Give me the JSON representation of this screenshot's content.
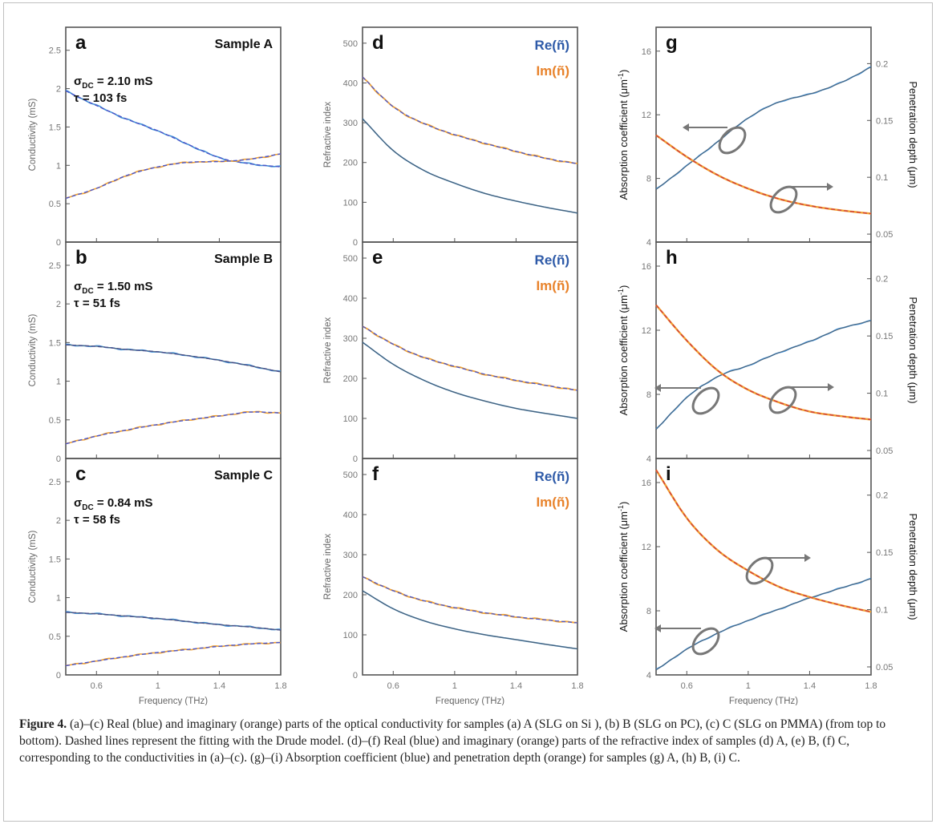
{
  "figure": {
    "panels": [
      {
        "id": "a",
        "label": "a",
        "sample": "Sample A",
        "sigma_dc": "2.10 mS",
        "tau": "103 fs"
      },
      {
        "id": "b",
        "label": "b",
        "sample": "Sample B",
        "sigma_dc": "1.50 mS",
        "tau": "51 fs"
      },
      {
        "id": "c",
        "label": "c",
        "sample": "Sample C",
        "sigma_dc": "0.84 mS",
        "tau": "58 fs"
      },
      {
        "id": "d",
        "label": "d"
      },
      {
        "id": "e",
        "label": "e"
      },
      {
        "id": "f",
        "label": "f"
      },
      {
        "id": "g",
        "label": "g"
      },
      {
        "id": "h",
        "label": "h"
      },
      {
        "id": "i",
        "label": "i"
      }
    ],
    "sigma_symbol": "σ",
    "sigma_subscript": "DC",
    "tau_symbol": "τ",
    "legend": {
      "re": "Re(ñ)",
      "im": "Im(ñ)"
    },
    "axis": {
      "frequency": "Frequency (THz)",
      "conductivity": "Conductivity (mS)",
      "refractive_index": "Refractive index",
      "absorption": "Absorption coefficient (μm",
      "absorption_sup": "-1",
      "absorption_end": ")",
      "penetration": "Penetration depth (μm)"
    },
    "ticks": {
      "x": [
        "0.6",
        "1",
        "1.4",
        "1.8"
      ],
      "conductivity": [
        "0",
        "0.5",
        "1",
        "1.5",
        "2",
        "2.5"
      ],
      "refractive": [
        "0",
        "100",
        "200",
        "300",
        "400",
        "500"
      ],
      "absorption": [
        "4",
        "8",
        "12",
        "16"
      ],
      "penetration": [
        "0.05",
        "0.1",
        "0.15",
        "0.2"
      ]
    }
  },
  "colors": {
    "real": "#3f8fd6",
    "imag": "#f0a030",
    "fit_blue": "#4a55c8",
    "fit_red": "#d23c3c",
    "dark": "#4a4a4a",
    "re_text": "#2e5aa8",
    "im_text": "#e8822a"
  },
  "chart_data": [
    {
      "type": "line",
      "panel": "a",
      "x": [
        0.4,
        0.6,
        0.8,
        1.0,
        1.2,
        1.4,
        1.6,
        1.8
      ],
      "xlim": [
        0.4,
        1.8
      ],
      "ylim": [
        0,
        2.8
      ],
      "series": [
        {
          "values": [
            1.97,
            1.78,
            1.6,
            1.45,
            1.27,
            1.1,
            1.02,
            0.98
          ]
        },
        {
          "values": [
            0.57,
            0.7,
            0.87,
            0.98,
            1.04,
            1.05,
            1.08,
            1.15
          ]
        }
      ]
    },
    {
      "type": "line",
      "panel": "b",
      "x": [
        0.4,
        0.6,
        0.8,
        1.0,
        1.2,
        1.4,
        1.6,
        1.8
      ],
      "xlim": [
        0.4,
        1.8
      ],
      "ylim": [
        0,
        2.8
      ],
      "series": [
        {
          "values": [
            1.47,
            1.45,
            1.41,
            1.38,
            1.33,
            1.27,
            1.2,
            1.12
          ]
        },
        {
          "values": [
            0.19,
            0.29,
            0.37,
            0.44,
            0.5,
            0.55,
            0.6,
            0.59
          ]
        }
      ]
    },
    {
      "type": "line",
      "panel": "c",
      "x": [
        0.4,
        0.6,
        0.8,
        1.0,
        1.2,
        1.4,
        1.6,
        1.8
      ],
      "xlim": [
        0.4,
        1.8
      ],
      "ylim": [
        0,
        2.8
      ],
      "series": [
        {
          "values": [
            0.81,
            0.79,
            0.76,
            0.73,
            0.69,
            0.65,
            0.62,
            0.58
          ]
        },
        {
          "values": [
            0.12,
            0.18,
            0.24,
            0.29,
            0.33,
            0.37,
            0.4,
            0.42
          ]
        }
      ]
    },
    {
      "type": "line",
      "panel": "d",
      "x": [
        0.4,
        0.6,
        0.8,
        1.0,
        1.2,
        1.4,
        1.6,
        1.8
      ],
      "xlim": [
        0.4,
        1.8
      ],
      "ylim": [
        0,
        540
      ],
      "series": [
        {
          "name": "Re(ñ)",
          "values": [
            310,
            230,
            180,
            148,
            122,
            103,
            87,
            73
          ]
        },
        {
          "name": "Im(ñ)",
          "values": [
            415,
            340,
            298,
            270,
            248,
            228,
            210,
            197
          ]
        }
      ]
    },
    {
      "type": "line",
      "panel": "e",
      "x": [
        0.4,
        0.6,
        0.8,
        1.0,
        1.2,
        1.4,
        1.6,
        1.8
      ],
      "xlim": [
        0.4,
        1.8
      ],
      "ylim": [
        0,
        540
      ],
      "series": [
        {
          "name": "Re(ñ)",
          "values": [
            290,
            235,
            195,
            165,
            143,
            125,
            112,
            100
          ]
        },
        {
          "name": "Im(ñ)",
          "values": [
            330,
            285,
            252,
            230,
            210,
            195,
            182,
            170
          ]
        }
      ]
    },
    {
      "type": "line",
      "panel": "f",
      "x": [
        0.4,
        0.6,
        0.8,
        1.0,
        1.2,
        1.4,
        1.6,
        1.8
      ],
      "xlim": [
        0.4,
        1.8
      ],
      "ylim": [
        0,
        540
      ],
      "series": [
        {
          "name": "Re(ñ)",
          "values": [
            210,
            165,
            135,
            115,
            100,
            88,
            76,
            65
          ]
        },
        {
          "name": "Im(ñ)",
          "values": [
            245,
            210,
            185,
            168,
            155,
            145,
            137,
            130
          ]
        }
      ]
    },
    {
      "type": "line",
      "panel": "g",
      "x": [
        0.4,
        0.6,
        0.8,
        1.0,
        1.2,
        1.4,
        1.6,
        1.8
      ],
      "xlim": [
        0.4,
        1.8
      ],
      "ylim": [
        4,
        17.5
      ],
      "y2lim": [
        0.043,
        0.232
      ],
      "series": [
        {
          "values": [
            7.3,
            8.8,
            10.3,
            11.8,
            12.8,
            13.3,
            14.0,
            15.0
          ]
        },
        {
          "values": [
            0.137,
            0.118,
            0.102,
            0.09,
            0.081,
            0.075,
            0.071,
            0.068
          ],
          "axis": "right"
        }
      ]
    },
    {
      "type": "line",
      "panel": "h",
      "x": [
        0.4,
        0.6,
        0.8,
        1.0,
        1.2,
        1.4,
        1.6,
        1.8
      ],
      "xlim": [
        0.4,
        1.8
      ],
      "ylim": [
        4,
        17.5
      ],
      "y2lim": [
        0.043,
        0.232
      ],
      "series": [
        {
          "values": [
            5.8,
            7.8,
            9.1,
            9.8,
            10.6,
            11.3,
            12.1,
            12.6
          ]
        },
        {
          "values": [
            0.177,
            0.146,
            0.12,
            0.103,
            0.092,
            0.084,
            0.08,
            0.077
          ],
          "axis": "right"
        }
      ]
    },
    {
      "type": "line",
      "panel": "i",
      "x": [
        0.4,
        0.6,
        0.8,
        1.0,
        1.2,
        1.4,
        1.6,
        1.8
      ],
      "xlim": [
        0.4,
        1.8
      ],
      "ylim": [
        4,
        17.5
      ],
      "y2lim": [
        0.043,
        0.232
      ],
      "series": [
        {
          "values": [
            4.3,
            5.6,
            6.6,
            7.4,
            8.1,
            8.8,
            9.4,
            10.0
          ]
        },
        {
          "values": [
            0.222,
            0.18,
            0.152,
            0.134,
            0.12,
            0.111,
            0.104,
            0.098
          ],
          "axis": "right"
        }
      ]
    }
  ],
  "caption": {
    "label": "Figure 4.",
    "text": " (a)–(c) Real (blue) and imaginary (orange) parts of the optical conductivity for samples (a) A (SLG on Si ), (b) B (SLG on PC), (c) C (SLG on PMMA) (from top to bottom). Dashed lines represent the fitting with the Drude model. (d)–(f) Real (blue) and imaginary (orange) parts of the refractive index of samples (d) A, (e) B, (f) C, corresponding to the conductivities in (a)–(c). (g)–(i) Absorption coefficient (blue) and penetration depth (orange) for samples (g) A, (h) B, (i) C."
  }
}
